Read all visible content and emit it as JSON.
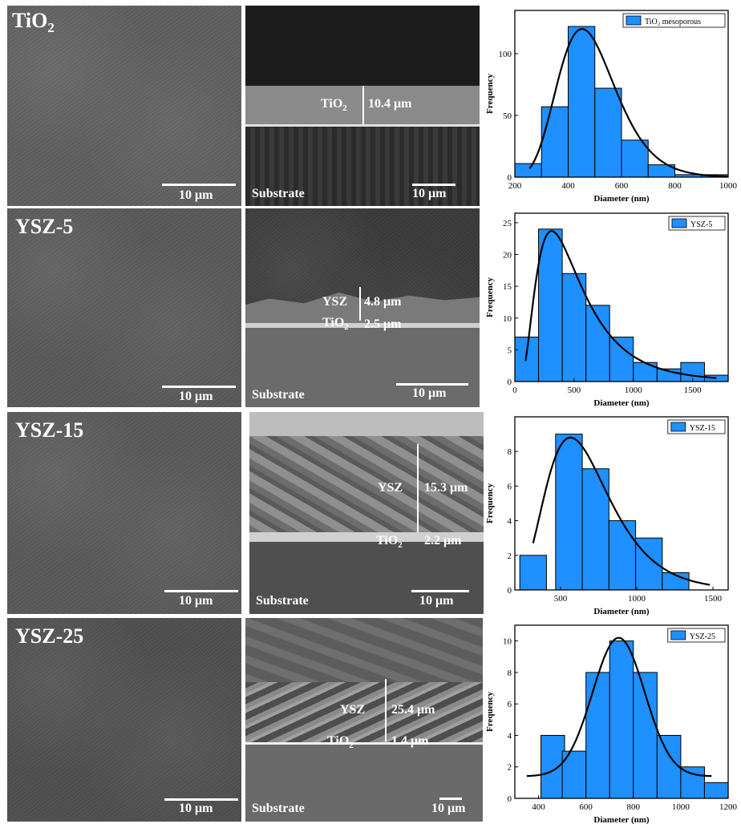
{
  "rows": [
    {
      "sample_main": "TiO",
      "sample_sub": "2",
      "plan_scale": "10 μm",
      "xs_layer1_main": "TiO",
      "xs_layer1_sub": "2",
      "xs_thickness1": "10.4 μm",
      "xs_substrate": "Substrate",
      "xs_scale": "10 μm"
    },
    {
      "sample_main": "YSZ-5",
      "plan_scale": "10 μm",
      "xs_layer1_main": "YSZ",
      "xs_thickness1": "4.8 μm",
      "xs_layer2_main": "TiO",
      "xs_layer2_sub": "2",
      "xs_thickness2": "2.5 μm",
      "xs_substrate": "Substrate",
      "xs_scale": "10 μm"
    },
    {
      "sample_main": "YSZ-15",
      "plan_scale": "10 μm",
      "xs_layer1_main": "YSZ",
      "xs_thickness1": "15.3 μm",
      "xs_layer2_main": "TiO",
      "xs_layer2_sub": "2",
      "xs_thickness2": "2.2 μm",
      "xs_substrate": "Substrate",
      "xs_scale": "10 μm"
    },
    {
      "sample_main": "YSZ-25",
      "plan_scale": "10 μm",
      "xs_layer1_main": "YSZ",
      "xs_thickness1": "25.4 μm",
      "xs_layer2_main": "TiO",
      "xs_layer2_sub": "2",
      "xs_thickness2": "1.4 μm",
      "xs_substrate": "Substrate",
      "xs_scale": "10 μm"
    }
  ],
  "chart_data": [
    {
      "type": "bar",
      "legend": "TiO₂ mesoporous",
      "xlabel": "Diameter (nm)",
      "ylabel": "Frequency",
      "xlim": [
        200,
        1000
      ],
      "ylim": [
        0,
        135
      ],
      "xticks": [
        200,
        400,
        600,
        800,
        1000
      ],
      "yticks": [
        0,
        50,
        100
      ],
      "bin_width": 100,
      "bins": [
        250,
        350,
        450,
        550,
        650,
        750,
        850,
        950
      ],
      "values": [
        11,
        57,
        122,
        72,
        30,
        10,
        2,
        2
      ],
      "fit_peak": 452,
      "fit_amp": 120,
      "fit_sigma": 0.24,
      "fit_range": [
        255,
        1000
      ]
    },
    {
      "type": "bar",
      "legend": "YSZ-5",
      "xlabel": "Diameter (nm)",
      "ylabel": "Frequency",
      "xlim": [
        0,
        1800
      ],
      "ylim": [
        0,
        26.5
      ],
      "xticks": [
        0,
        500,
        1000,
        1500
      ],
      "yticks": [
        0,
        5,
        10,
        15,
        20,
        25
      ],
      "bin_width": 200,
      "bins": [
        100,
        300,
        500,
        700,
        900,
        1100,
        1300,
        1500,
        1700
      ],
      "values": [
        7,
        24,
        17,
        12,
        7,
        3,
        2,
        3,
        1
      ],
      "fit_peak": 310,
      "fit_amp": 23.7,
      "fit_sigma": 0.62,
      "fit_range": [
        90,
        1700
      ]
    },
    {
      "type": "bar",
      "legend": "YSZ-15",
      "xlabel": "Diameter (nm)",
      "ylabel": "Frequency",
      "xlim": [
        200,
        1600
      ],
      "ylim": [
        0,
        10
      ],
      "xticks": [
        500,
        1000,
        1500
      ],
      "yticks": [
        0,
        2,
        4,
        6,
        8
      ],
      "bin_width": 175,
      "bins": [
        320,
        555,
        730,
        905,
        1080,
        1255
      ],
      "values": [
        2,
        9,
        7,
        4,
        3,
        1
      ],
      "fit_peak": 565,
      "fit_amp": 8.8,
      "fit_sigma": 0.37,
      "fit_range": [
        320,
        1480
      ]
    },
    {
      "type": "bar",
      "legend": "YSZ-25",
      "xlabel": "Diameter (nm)",
      "ylabel": "Frequency",
      "xlim": [
        300,
        1200
      ],
      "ylim": [
        0,
        11
      ],
      "xticks": [
        400,
        600,
        800,
        1000,
        1200
      ],
      "yticks": [
        0,
        2,
        4,
        6,
        8,
        10
      ],
      "bin_width": 100,
      "bins": [
        460,
        550,
        650,
        750,
        850,
        950,
        1050,
        1150
      ],
      "values": [
        4,
        3,
        8,
        10,
        8,
        4,
        2,
        1
      ],
      "fit_peak": 738,
      "fit_amp": 8.8,
      "fit_sigma": 110,
      "fit_base": 1.4,
      "fit_range": [
        350,
        1130
      ]
    }
  ],
  "colors": {
    "bar_fill": "#1e90ff",
    "bar_edge": "#000000",
    "fit_line": "#000000"
  }
}
